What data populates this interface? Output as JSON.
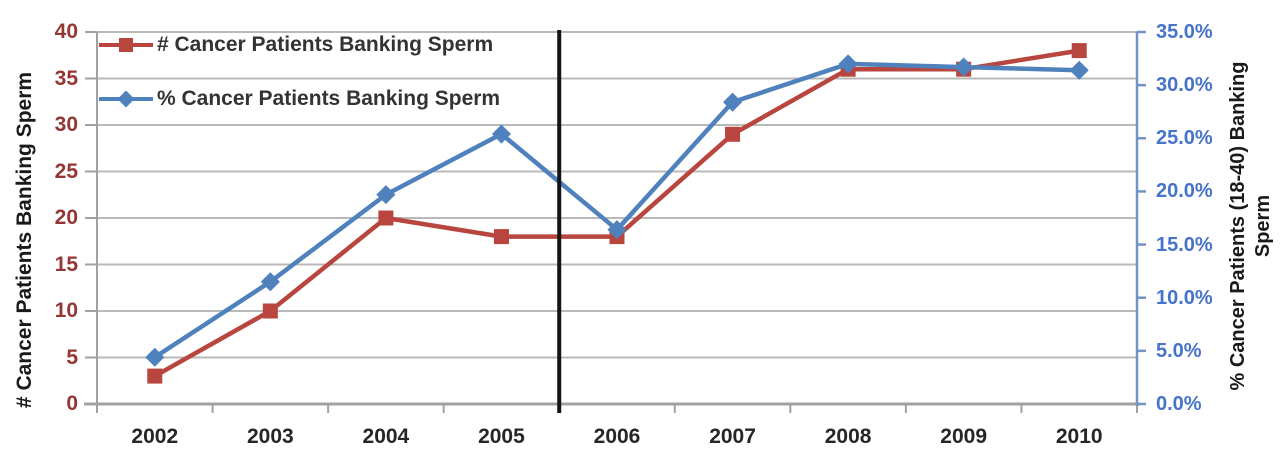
{
  "chart_data": {
    "type": "line",
    "title": "",
    "categories": [
      "2002",
      "2003",
      "2004",
      "2005",
      "2006",
      "2007",
      "2008",
      "2009",
      "2010"
    ],
    "series": [
      {
        "name": "# Cancer Patients Banking Sperm",
        "axis": "left",
        "marker": "square",
        "color": "#b8463f",
        "values": [
          3,
          10,
          20,
          18,
          18,
          29,
          36,
          36,
          38
        ]
      },
      {
        "name": "% Cancer Patients Banking Sperm",
        "axis": "right",
        "marker": "diamond",
        "color": "#4f81bd",
        "values": [
          4.4,
          11.5,
          19.7,
          25.4,
          16.4,
          28.4,
          32.0,
          31.7,
          31.4
        ]
      }
    ],
    "left_axis": {
      "label": "# Cancer Patients Banking Sperm",
      "min": 0,
      "max": 40,
      "step": 5,
      "tick_labels": [
        "0",
        "5",
        "10",
        "15",
        "20",
        "25",
        "30",
        "35",
        "40"
      ],
      "tick_label_color": "#943634"
    },
    "right_axis": {
      "label_line1": "% Cancer Patients (18-40) Banking",
      "label_line2": "Sperm",
      "min": 0,
      "max": 35,
      "step": 5,
      "tick_labels": [
        "0.0%",
        "5.0%",
        "10.0%",
        "15.0%",
        "20.0%",
        "25.0%",
        "30.0%",
        "35.0%"
      ],
      "tick_label_color": "#4673cb",
      "axis_color": "#7094c6"
    },
    "x_axis": {
      "tick_label_color": "#262626"
    },
    "annotations": [
      {
        "type": "vertical-line",
        "after_category": "2005",
        "color": "#141414"
      }
    ],
    "legend": {
      "position": "top-left"
    },
    "grid": true,
    "colors": {
      "gridline": "#b9b9b9",
      "axis": "#a1a1a1"
    }
  }
}
